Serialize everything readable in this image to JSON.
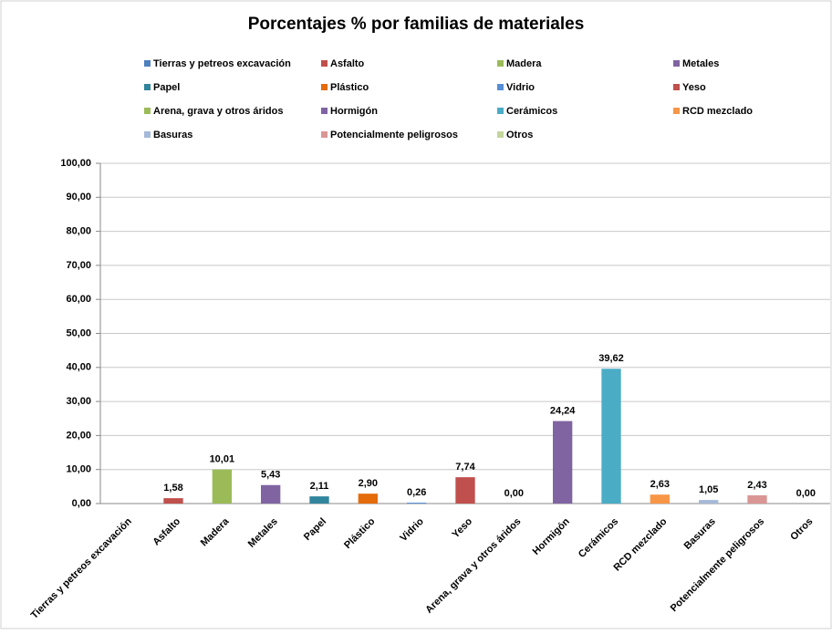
{
  "chart_data": {
    "type": "bar",
    "title": "Porcentajes % por familias de materiales",
    "categories": [
      "Tierras y petreos excavación",
      "Asfalto",
      "Madera",
      "Metales",
      "Papel",
      "Plástico",
      "Vidrio",
      "Yeso",
      "Arena, grava y otros áridos",
      "Hormigón",
      "Cerámicos",
      "RCD mezclado",
      "Basuras",
      "Potencialmente peligrosos",
      "Otros"
    ],
    "values": [
      0,
      1.58,
      10.01,
      5.43,
      2.11,
      2.9,
      0.26,
      7.74,
      0,
      24.24,
      39.62,
      2.63,
      1.05,
      2.43,
      0
    ],
    "value_labels": [
      null,
      "1,58",
      "10,01",
      "5,43",
      "2,11",
      "2,90",
      "0,26",
      "7,74",
      "0,00",
      "24,24",
      "39,62",
      "2,63",
      "1,05",
      "2,43",
      "0,00"
    ],
    "colors": [
      "#4f81bd",
      "#c0504d",
      "#9bbb59",
      "#8064a2",
      "#31859c",
      "#e46c0a",
      "#558ed5",
      "#c0504d",
      "#9bbb59",
      "#8064a2",
      "#4bacc6",
      "#f79646",
      "#a5b9d8",
      "#d99694",
      "#c3d69b"
    ],
    "ylim": [
      0,
      100
    ],
    "yticks": [
      {
        "value": 0,
        "label": "0,00"
      },
      {
        "value": 10,
        "label": "10,00"
      },
      {
        "value": 20,
        "label": "20,00"
      },
      {
        "value": 30,
        "label": "30,00"
      },
      {
        "value": 40,
        "label": "40,00"
      },
      {
        "value": 50,
        "label": "50,00"
      },
      {
        "value": 60,
        "label": "60,00"
      },
      {
        "value": 70,
        "label": "70,00"
      },
      {
        "value": 80,
        "label": "80,00"
      },
      {
        "value": 90,
        "label": "90,00"
      },
      {
        "value": 100,
        "label": "100,00"
      }
    ],
    "grid": true,
    "legend": "top"
  }
}
